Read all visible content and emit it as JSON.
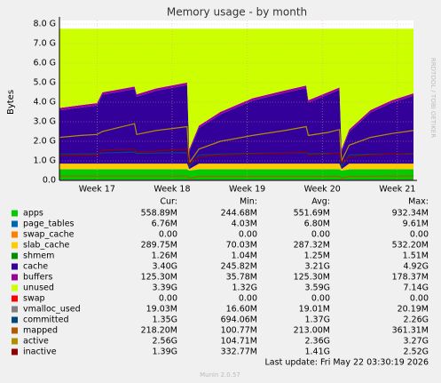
{
  "chart_data": {
    "type": "area",
    "title": "Memory usage - by month",
    "ylabel": "Bytes",
    "side_text": "RRDTOOL / TOBI OETIKER",
    "x": [
      0,
      2,
      3.5,
      4,
      7,
      7.2,
      9,
      11.9,
      12.1,
      13,
      15,
      18,
      21,
      23,
      23.2,
      25,
      26.1,
      26.3,
      27,
      29,
      31,
      33
    ],
    "xlim": [
      0,
      33
    ],
    "xticks": [
      {
        "value": 3.5,
        "label": "Week 17"
      },
      {
        "value": 10.5,
        "label": "Week 18"
      },
      {
        "value": 17.5,
        "label": "Week 19"
      },
      {
        "value": 24.5,
        "label": "Week 20"
      },
      {
        "value": 31.5,
        "label": "Week 21"
      }
    ],
    "ylim": [
      0,
      8
    ],
    "yticks": [
      {
        "value": 0,
        "label": "0.0"
      },
      {
        "value": 1,
        "label": "1.0 G"
      },
      {
        "value": 2,
        "label": "2.0 G"
      },
      {
        "value": 3,
        "label": "3.0 G"
      },
      {
        "value": 4,
        "label": "4.0 G"
      },
      {
        "value": 5,
        "label": "5.0 G"
      },
      {
        "value": 6,
        "label": "6.0 G"
      },
      {
        "value": 7,
        "label": "7.0 G"
      },
      {
        "value": 8,
        "label": "8.0 G"
      }
    ],
    "grid": true,
    "legend_headers": [
      "Cur:",
      "Min:",
      "Avg:",
      "Max:"
    ],
    "series": [
      {
        "name": "apps",
        "color": "#00cc00",
        "stacked": true,
        "stats": [
          "558.89M",
          "244.68M",
          "551.69M",
          "932.34M"
        ],
        "values": [
          0.56,
          0.56,
          0.56,
          0.56,
          0.56,
          0.56,
          0.56,
          0.56,
          0.5,
          0.56,
          0.56,
          0.56,
          0.56,
          0.56,
          0.56,
          0.56,
          0.56,
          0.5,
          0.56,
          0.56,
          0.56,
          0.56
        ]
      },
      {
        "name": "page_tables",
        "color": "#0066b3",
        "stacked": true,
        "stats": [
          "6.76M",
          "4.03M",
          "6.80M",
          "9.61M"
        ],
        "values": [
          0.007,
          0.007,
          0.007,
          0.007,
          0.007,
          0.007,
          0.007,
          0.007,
          0.007,
          0.007,
          0.007,
          0.007,
          0.007,
          0.007,
          0.007,
          0.007,
          0.007,
          0.007,
          0.007,
          0.007,
          0.007,
          0.007
        ]
      },
      {
        "name": "swap_cache",
        "color": "#ff8000",
        "stacked": true,
        "stats": [
          "0.00",
          "0.00",
          "0.00",
          "0.00"
        ],
        "values": [
          0,
          0,
          0,
          0,
          0,
          0,
          0,
          0,
          0,
          0,
          0,
          0,
          0,
          0,
          0,
          0,
          0,
          0,
          0,
          0,
          0,
          0
        ]
      },
      {
        "name": "slab_cache",
        "color": "#ffcc00",
        "stacked": true,
        "stats": [
          "289.75M",
          "70.03M",
          "287.32M",
          "532.20M"
        ],
        "values": [
          0.29,
          0.29,
          0.29,
          0.29,
          0.29,
          0.29,
          0.29,
          0.29,
          0.07,
          0.29,
          0.29,
          0.29,
          0.29,
          0.29,
          0.29,
          0.29,
          0.29,
          0.07,
          0.29,
          0.29,
          0.29,
          0.29
        ]
      },
      {
        "name": "shmem",
        "color": "#008f00",
        "stacked": true,
        "stats": [
          "1.26M",
          "1.04M",
          "1.25M",
          "1.51M"
        ],
        "values": [
          0.001,
          0.001,
          0.001,
          0.001,
          0.001,
          0.001,
          0.001,
          0.001,
          0.001,
          0.001,
          0.001,
          0.001,
          0.001,
          0.001,
          0.001,
          0.001,
          0.001,
          0.001,
          0.001,
          0.001,
          0.001,
          0.001
        ]
      },
      {
        "name": "cache",
        "color": "#330099",
        "stacked": true,
        "stats": [
          "3.40G",
          "245.82M",
          "3.21G",
          "4.92G"
        ],
        "values": [
          2.72,
          2.87,
          2.97,
          3.52,
          3.82,
          3.42,
          3.72,
          4.02,
          0.9,
          1.82,
          2.52,
          3.22,
          3.62,
          3.87,
          3.12,
          3.52,
          3.77,
          0.9,
          1.62,
          2.62,
          3.12,
          3.47
        ]
      },
      {
        "name": "buffers",
        "color": "#990099",
        "stacked": true,
        "stats": [
          "125.30M",
          "35.78M",
          "125.30M",
          "178.37M"
        ],
        "values": [
          0.125,
          0.125,
          0.125,
          0.125,
          0.125,
          0.125,
          0.125,
          0.125,
          0.125,
          0.125,
          0.125,
          0.125,
          0.125,
          0.125,
          0.125,
          0.125,
          0.125,
          0.125,
          0.125,
          0.125,
          0.125,
          0.125
        ]
      },
      {
        "name": "unused",
        "color": "#ccff00",
        "stacked": true,
        "stats": [
          "3.39G",
          "1.32G",
          "3.59G",
          "7.14G"
        ],
        "values": [
          4.05,
          3.9,
          3.8,
          3.25,
          2.95,
          3.35,
          3.05,
          2.75,
          6.15,
          4.95,
          4.25,
          3.55,
          3.15,
          2.9,
          3.65,
          3.25,
          3.0,
          6.15,
          5.15,
          4.15,
          3.65,
          3.3
        ]
      },
      {
        "name": "swap",
        "color": "#ff0000",
        "stacked": true,
        "stats": [
          "0.00",
          "0.00",
          "0.00",
          "0.00"
        ],
        "values": [
          0,
          0,
          0,
          0,
          0,
          0,
          0,
          0,
          0,
          0,
          0,
          0,
          0,
          0,
          0,
          0,
          0,
          0,
          0,
          0,
          0,
          0
        ]
      },
      {
        "name": "vmalloc_used",
        "color": "#808080",
        "stacked": false,
        "stats": [
          "19.03M",
          "16.60M",
          "19.01M",
          "20.19M"
        ],
        "values": [
          0.019,
          0.019,
          0.019,
          0.019,
          0.019,
          0.019,
          0.019,
          0.019,
          0.017,
          0.019,
          0.019,
          0.019,
          0.019,
          0.019,
          0.019,
          0.019,
          0.019,
          0.017,
          0.019,
          0.019,
          0.019,
          0.019
        ]
      },
      {
        "name": "committed",
        "color": "#00487d",
        "stacked": false,
        "stats": [
          "1.35G",
          "694.06M",
          "1.37G",
          "2.26G"
        ],
        "values": [
          1.35,
          1.36,
          1.36,
          1.4,
          1.45,
          1.38,
          1.4,
          1.42,
          0.7,
          1.3,
          1.35,
          1.38,
          1.4,
          1.42,
          1.36,
          1.38,
          1.4,
          0.7,
          1.3,
          1.34,
          1.35,
          1.35
        ]
      },
      {
        "name": "mapped",
        "color": "#b35a00",
        "stacked": false,
        "stats": [
          "218.20M",
          "100.77M",
          "213.00M",
          "361.31M"
        ],
        "values": [
          0.22,
          0.22,
          0.22,
          0.22,
          0.22,
          0.22,
          0.22,
          0.22,
          0.1,
          0.21,
          0.21,
          0.21,
          0.21,
          0.21,
          0.21,
          0.21,
          0.21,
          0.1,
          0.21,
          0.21,
          0.22,
          0.22
        ]
      },
      {
        "name": "active",
        "color": "#b38f00",
        "stacked": false,
        "stats": [
          "2.56G",
          "104.71M",
          "2.36G",
          "3.27G"
        ],
        "values": [
          2.2,
          2.3,
          2.35,
          2.5,
          2.9,
          2.35,
          2.55,
          2.75,
          0.9,
          1.6,
          2.0,
          2.3,
          2.55,
          2.75,
          2.3,
          2.45,
          2.6,
          1.0,
          1.8,
          2.2,
          2.4,
          2.55
        ]
      },
      {
        "name": "inactive",
        "color": "#8f0000",
        "stacked": false,
        "stats": [
          "1.39G",
          "332.77M",
          "1.41G",
          "2.52G"
        ],
        "values": [
          1.25,
          1.3,
          1.3,
          1.55,
          1.6,
          1.45,
          1.5,
          1.6,
          0.85,
          1.2,
          1.3,
          1.35,
          1.4,
          1.45,
          1.3,
          1.35,
          1.4,
          0.9,
          1.2,
          1.3,
          1.35,
          1.4
        ]
      }
    ],
    "last_update": "Last update: Fri May 22 03:30:19 2026",
    "footer": "Munin 2.0.57"
  }
}
